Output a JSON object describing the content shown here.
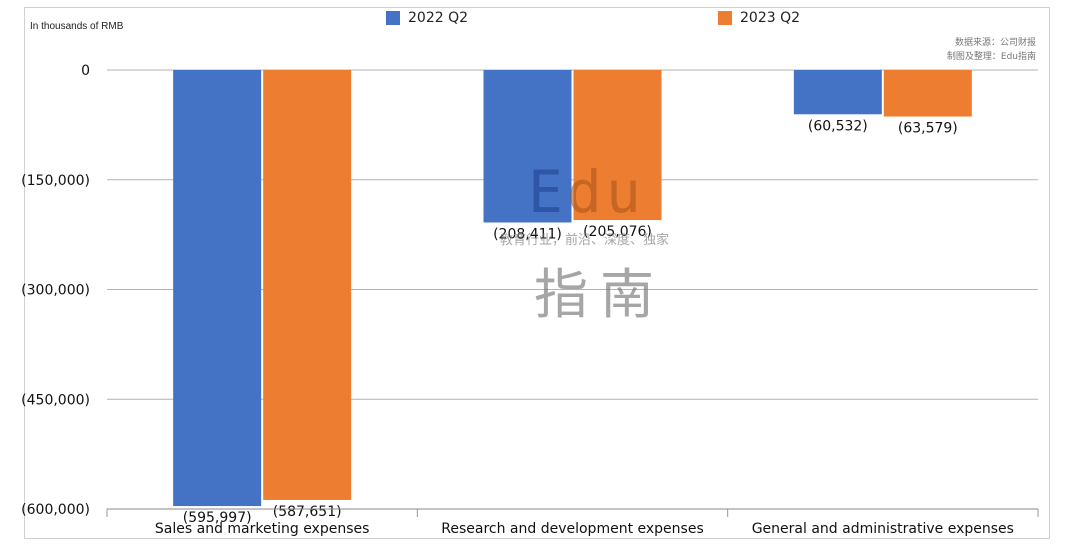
{
  "chart_data": {
    "type": "bar",
    "unit_label": "In thousands of RMB",
    "categories": [
      "Sales and marketing expenses",
      "Research and development expenses",
      "General and administrative expenses"
    ],
    "series": [
      {
        "name": "2022 Q2",
        "color": "#4472c4",
        "values": [
          -595997,
          -208411,
          -60532
        ],
        "labels": [
          "(595,997)",
          "(208,411)",
          "(60,532)"
        ]
      },
      {
        "name": "2023 Q2",
        "color": "#ed7d31",
        "values": [
          -587651,
          -205076,
          -63579
        ],
        "labels": [
          "(587,651)",
          "(205,076)",
          "(63,579)"
        ]
      }
    ],
    "ylim": [
      -600000,
      0
    ],
    "yticks": [
      0,
      -150000,
      -300000,
      -450000,
      -600000
    ],
    "ytick_labels": [
      "0",
      "(150,000)",
      "(300,000)",
      "(450,000)",
      "(600,000)"
    ],
    "grid": true,
    "legend_position": "top"
  },
  "source_note": [
    "数据来源：公司财报",
    "制图及整理：Edu指南"
  ],
  "watermark": {
    "edu_e": "E",
    "edu_du": "du",
    "tagline": "教育行业，前沿、深度、独家",
    "zh": "指南"
  }
}
